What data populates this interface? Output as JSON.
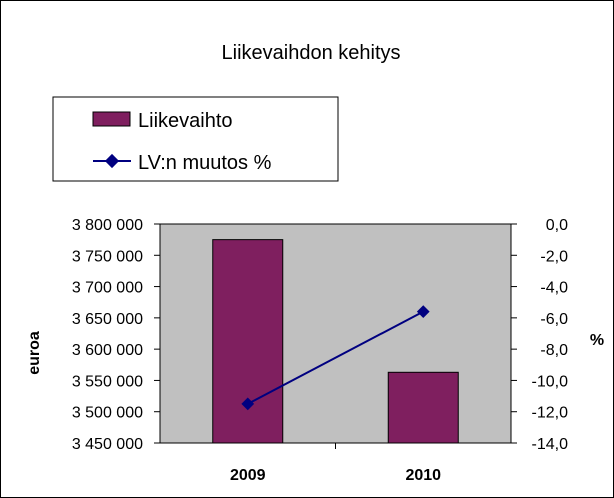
{
  "chart_data": {
    "type": "bar",
    "title": "Liikevaihdon kehitys",
    "categories": [
      "2009",
      "2010"
    ],
    "series": [
      {
        "name": "Liikevaihto",
        "type": "bar",
        "axis": "left",
        "values": [
          3775000,
          3563000
        ],
        "color": "#7f1f5f"
      },
      {
        "name": "LV:n muutos %",
        "type": "line",
        "axis": "right",
        "values": [
          -11.5,
          -5.6
        ],
        "color": "#000080"
      }
    ],
    "ylabel": "euroa",
    "ylabel_right": "%",
    "ylim": [
      3450000,
      3800000
    ],
    "ylim_right": [
      -14.0,
      0.0
    ],
    "yticks": [
      "3 800 000",
      "3 750 000",
      "3 700 000",
      "3 650 000",
      "3 600 000",
      "3 550 000",
      "3 500 000",
      "3 450 000"
    ],
    "yticks_right": [
      "0,0",
      "-2,0",
      "-4,0",
      "-6,0",
      "-8,0",
      "-10,0",
      "-12,0",
      "-14,0"
    ],
    "plot_background": "#c0c0c0",
    "grid": false,
    "legend_position": "top-left"
  }
}
